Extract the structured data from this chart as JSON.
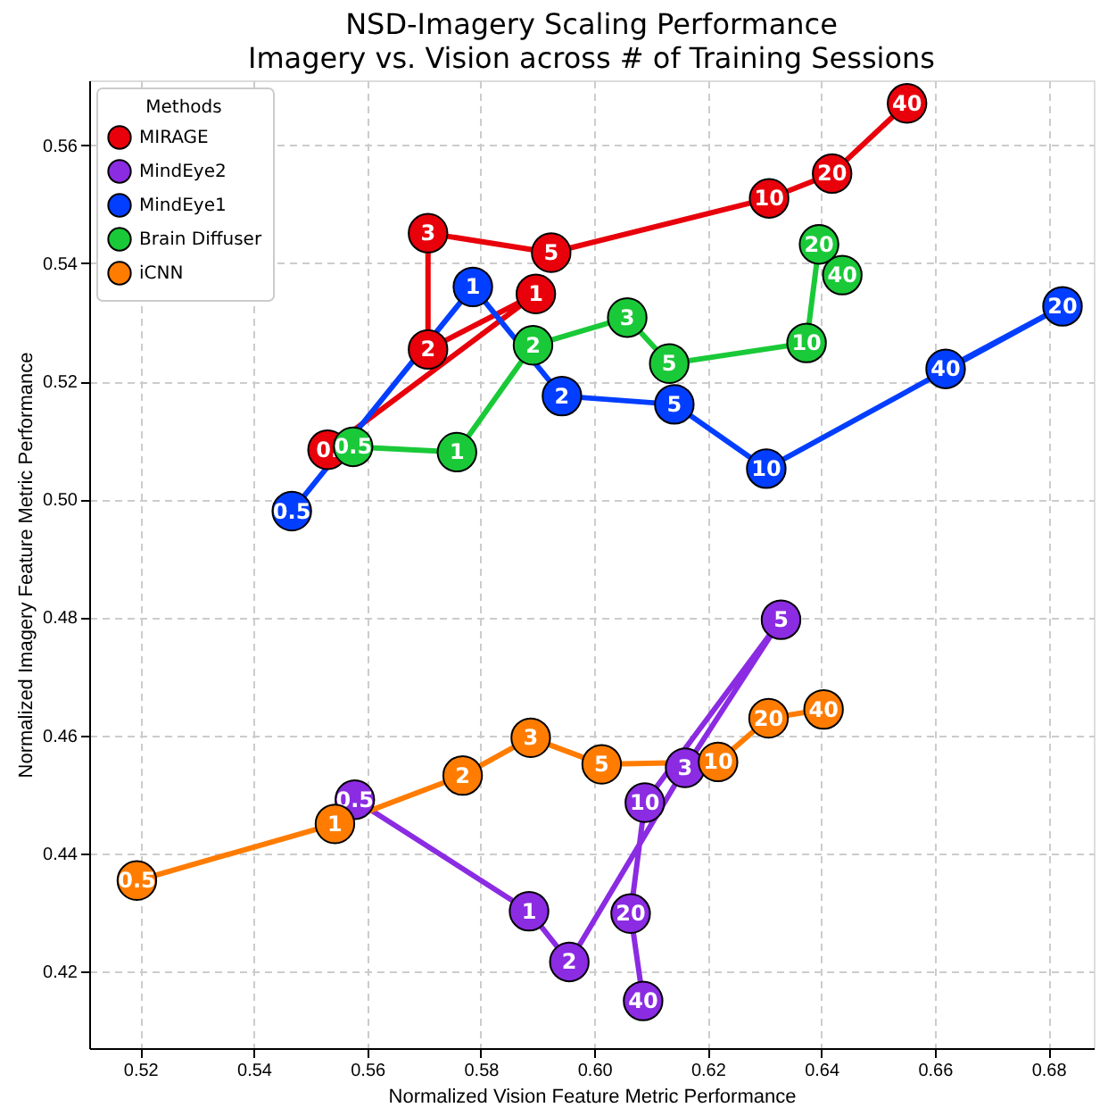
{
  "chart_data": {
    "type": "line",
    "title": "NSD-Imagery Scaling Performance",
    "subtitle": "Imagery vs. Vision across # of Training Sessions",
    "xlabel": "Normalized Vision Feature Metric Performance",
    "ylabel": "Normalized Imagery Feature Metric Performance",
    "legend_title": "Methods",
    "legend": "top left",
    "grid": true,
    "marker": "circle",
    "line_style": "solid",
    "xlim": [
      0.511,
      0.688
    ],
    "ylim": [
      0.407,
      0.571
    ],
    "xticks": [
      0.52,
      0.54,
      0.56,
      0.58,
      {
        "value": 0.6,
        "label": "0.60"
      },
      0.62,
      0.64,
      0.66,
      0.68
    ],
    "yticks": [
      0.42,
      0.44,
      0.46,
      0.48,
      {
        "value": 0.5,
        "label": "0.50"
      },
      0.52,
      0.54,
      0.56
    ],
    "series": [
      {
        "name": "MIRAGE",
        "color": "#e8000b",
        "x": [
          0.553,
          0.5897,
          0.5707,
          0.5707,
          0.5924,
          0.6308,
          0.6419,
          0.6551
        ],
        "values": [
          0.5084,
          0.5348,
          0.5254,
          0.5451,
          0.5418,
          0.551,
          0.5552,
          0.5671
        ]
      },
      {
        "name": "MindEye2",
        "color": "#8b2be2",
        "x": [
          0.5578,
          0.5885,
          0.5956,
          0.616,
          0.6329,
          0.6089,
          0.6064,
          0.6086
        ],
        "values": [
          0.4491,
          0.4302,
          0.4216,
          0.4545,
          0.4796,
          0.4486,
          0.4298,
          0.415
        ]
      },
      {
        "name": "MindEye1",
        "color": "#023eff",
        "x": [
          0.5467,
          0.5786,
          0.5943,
          0.6141,
          0.6303,
          0.6825,
          0.6619
        ],
        "values": [
          0.498,
          0.536,
          0.5175,
          0.5161,
          0.5052,
          0.5327,
          0.5221
        ]
      },
      {
        "name": "Brain Diffuser",
        "color": "#1ac938",
        "x": [
          0.5575,
          0.5758,
          0.5892,
          0.6058,
          0.6132,
          0.6374,
          0.6396,
          0.6437
        ],
        "values": [
          0.5089,
          0.508,
          0.5261,
          0.5308,
          0.523,
          0.5265,
          0.5432,
          0.538
        ]
      },
      {
        "name": "iCNN",
        "color": "#ff7c00",
        "x": [
          0.5194,
          0.5543,
          0.5768,
          0.5888,
          0.6013,
          0.6218,
          0.6307,
          0.6404
        ],
        "values": [
          0.4354,
          0.445,
          0.4532,
          0.4596,
          0.4551,
          0.4555,
          0.4629,
          0.4644
        ]
      }
    ],
    "annotations": [
      {
        "text": "0.",
        "x": 0.553,
        "y": 0.5084
      },
      {
        "text": "1",
        "x": 0.5897,
        "y": 0.5348
      },
      {
        "text": "2",
        "x": 0.5707,
        "y": 0.5254
      },
      {
        "text": "3",
        "x": 0.5707,
        "y": 0.5451
      },
      {
        "text": "5",
        "x": 0.5924,
        "y": 0.5418
      },
      {
        "text": "10",
        "x": 0.6308,
        "y": 0.551
      },
      {
        "text": "20",
        "x": 0.6419,
        "y": 0.5552
      },
      {
        "text": "40",
        "x": 0.6551,
        "y": 0.5671
      },
      {
        "text": "0.5",
        "x": 0.5578,
        "y": 0.4491
      },
      {
        "text": "1",
        "x": 0.5885,
        "y": 0.4302
      },
      {
        "text": "2",
        "x": 0.5956,
        "y": 0.4216
      },
      {
        "text": "3",
        "x": 0.616,
        "y": 0.4545
      },
      {
        "text": "5",
        "x": 0.6329,
        "y": 0.4796
      },
      {
        "text": "10",
        "x": 0.6089,
        "y": 0.4486
      },
      {
        "text": "20",
        "x": 0.6064,
        "y": 0.4298
      },
      {
        "text": "40",
        "x": 0.6086,
        "y": 0.415
      },
      {
        "text": "0.5",
        "x": 0.5467,
        "y": 0.498
      },
      {
        "text": "1",
        "x": 0.5786,
        "y": 0.536
      },
      {
        "text": "2",
        "x": 0.5943,
        "y": 0.5175
      },
      {
        "text": "5",
        "x": 0.6141,
        "y": 0.5161
      },
      {
        "text": "10",
        "x": 0.6303,
        "y": 0.5052
      },
      {
        "text": "20",
        "x": 0.6825,
        "y": 0.5327
      },
      {
        "text": "40",
        "x": 0.6619,
        "y": 0.5221
      },
      {
        "text": "0.5",
        "x": 0.5575,
        "y": 0.5089
      },
      {
        "text": "1",
        "x": 0.5758,
        "y": 0.508
      },
      {
        "text": "2",
        "x": 0.5892,
        "y": 0.5261
      },
      {
        "text": "3",
        "x": 0.6058,
        "y": 0.5308
      },
      {
        "text": "5",
        "x": 0.6132,
        "y": 0.523
      },
      {
        "text": "10",
        "x": 0.6374,
        "y": 0.5265
      },
      {
        "text": "20",
        "x": 0.6396,
        "y": 0.5432
      },
      {
        "text": "40",
        "x": 0.6437,
        "y": 0.538
      },
      {
        "text": "0.5",
        "x": 0.5194,
        "y": 0.4354
      },
      {
        "text": "1",
        "x": 0.5543,
        "y": 0.445
      },
      {
        "text": "2",
        "x": 0.5768,
        "y": 0.4532
      },
      {
        "text": "3",
        "x": 0.5888,
        "y": 0.4596
      },
      {
        "text": "5",
        "x": 0.6013,
        "y": 0.4551
      },
      {
        "text": "10",
        "x": 0.6218,
        "y": 0.4555
      },
      {
        "text": "20",
        "x": 0.6307,
        "y": 0.4629
      },
      {
        "text": "40",
        "x": 0.6404,
        "y": 0.4644
      }
    ]
  }
}
